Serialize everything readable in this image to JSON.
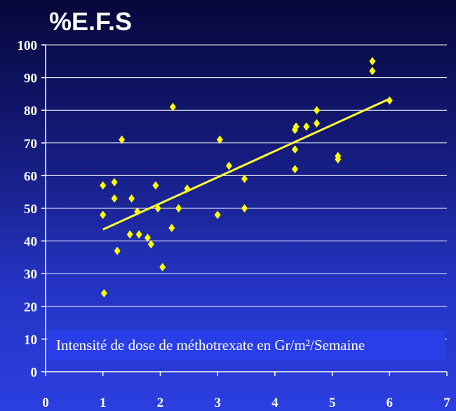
{
  "colors": {
    "background_top": "#06063a",
    "background_bottom": "#2b3ee0",
    "grid": "#ffffff",
    "points": "#ffff00",
    "trend": "#ffff33",
    "annotation_box": "#2a3ee8",
    "text": "#ffffff"
  },
  "chart_data": {
    "type": "scatter",
    "title": "%E.F.S",
    "xlabel": "Intensité de dose de méthotrexate en Gr/m²/Semaine",
    "ylabel": "",
    "xlim": [
      0,
      7
    ],
    "ylim": [
      0,
      100
    ],
    "x_ticks": [
      "0",
      "1",
      "2",
      "3",
      "4",
      "5",
      "6",
      "7"
    ],
    "y_ticks": [
      "0",
      "10",
      "20",
      "30",
      "40",
      "50",
      "60",
      "70",
      "80",
      "90",
      "100"
    ],
    "grid": {
      "horizontal": true,
      "vertical": false
    },
    "marker": "diamond",
    "points": [
      {
        "x": 1.0,
        "y": 57
      },
      {
        "x": 1.0,
        "y": 48
      },
      {
        "x": 1.02,
        "y": 24
      },
      {
        "x": 1.2,
        "y": 58
      },
      {
        "x": 1.2,
        "y": 53
      },
      {
        "x": 1.25,
        "y": 37
      },
      {
        "x": 1.33,
        "y": 71
      },
      {
        "x": 1.47,
        "y": 42
      },
      {
        "x": 1.5,
        "y": 53
      },
      {
        "x": 1.6,
        "y": 49
      },
      {
        "x": 1.63,
        "y": 42
      },
      {
        "x": 1.78,
        "y": 41
      },
      {
        "x": 1.84,
        "y": 39
      },
      {
        "x": 1.92,
        "y": 57
      },
      {
        "x": 1.96,
        "y": 50
      },
      {
        "x": 2.04,
        "y": 32
      },
      {
        "x": 2.2,
        "y": 44
      },
      {
        "x": 2.22,
        "y": 81
      },
      {
        "x": 2.32,
        "y": 50
      },
      {
        "x": 2.47,
        "y": 56
      },
      {
        "x": 3.0,
        "y": 48
      },
      {
        "x": 3.04,
        "y": 71
      },
      {
        "x": 3.2,
        "y": 63
      },
      {
        "x": 3.47,
        "y": 59
      },
      {
        "x": 3.47,
        "y": 50
      },
      {
        "x": 4.35,
        "y": 74
      },
      {
        "x": 4.37,
        "y": 75
      },
      {
        "x": 4.35,
        "y": 68
      },
      {
        "x": 4.35,
        "y": 62
      },
      {
        "x": 4.55,
        "y": 75
      },
      {
        "x": 4.73,
        "y": 80
      },
      {
        "x": 4.73,
        "y": 76
      },
      {
        "x": 5.1,
        "y": 66
      },
      {
        "x": 5.1,
        "y": 65
      },
      {
        "x": 5.7,
        "y": 95
      },
      {
        "x": 5.7,
        "y": 92
      },
      {
        "x": 6.0,
        "y": 83
      }
    ],
    "trendline": {
      "x": [
        1.0,
        6.0
      ],
      "y": [
        43.5,
        83.5
      ]
    }
  }
}
